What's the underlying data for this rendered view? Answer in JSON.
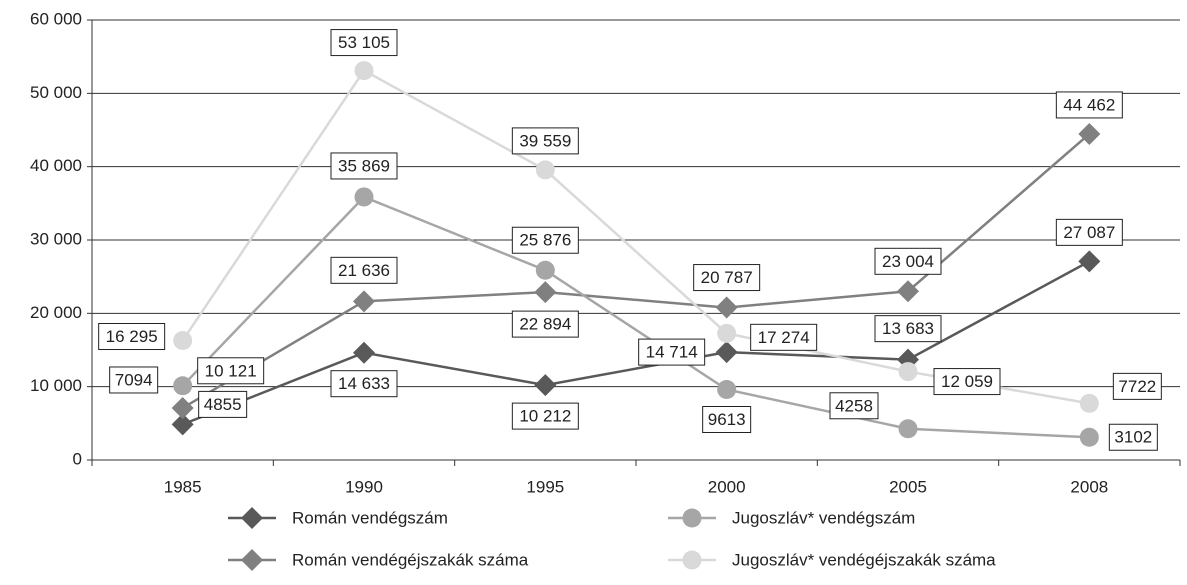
{
  "chart_data": {
    "type": "line",
    "categories": [
      "1985",
      "1990",
      "1995",
      "2000",
      "2005",
      "2008"
    ],
    "ylim": [
      0,
      60000
    ],
    "yticks": [
      0,
      {
        "value": 10000,
        "label": "10 000"
      },
      {
        "value": 20000,
        "label": "20 000"
      },
      {
        "value": 30000,
        "label": "30 000"
      },
      {
        "value": 40000,
        "label": "40 000"
      },
      {
        "value": 50000,
        "label": "50 000"
      },
      {
        "value": 60000,
        "label": "60 000"
      }
    ],
    "grid": true,
    "legend": "bottom",
    "series": [
      {
        "name": "Román vendégszám",
        "color": "#595959",
        "marker": "diamond",
        "values": [
          4855,
          14633,
          10212,
          14714,
          13683,
          27087
        ],
        "value_labels": [
          "4855",
          "14 633",
          "10 212",
          "14 714",
          "13 683",
          "27 087"
        ]
      },
      {
        "name": "Román vendégéjszakák száma",
        "color": "#808080",
        "marker": "diamond",
        "values": [
          7094,
          21636,
          22894,
          20787,
          23004,
          44462
        ],
        "value_labels": [
          "7094",
          "21 636",
          "22 894",
          "20 787",
          "23 004",
          "44 462"
        ]
      },
      {
        "name": "Jugoszláv* vendégszám",
        "color": "#a6a6a6",
        "marker": "circle",
        "values": [
          10121,
          35869,
          25876,
          9613,
          4258,
          3102
        ],
        "value_labels": [
          "10 121",
          "35 869",
          "25 876",
          "9613",
          "4258",
          "3102"
        ]
      },
      {
        "name": "Jugoszláv* vendégéjszakák száma",
        "color": "#d9d9d9",
        "marker": "circle",
        "values": [
          16295,
          53105,
          39559,
          17274,
          12059,
          7722
        ],
        "value_labels": [
          "16 295",
          "53 105",
          "39 559",
          "17 274",
          "12 059",
          "7722"
        ]
      }
    ]
  }
}
